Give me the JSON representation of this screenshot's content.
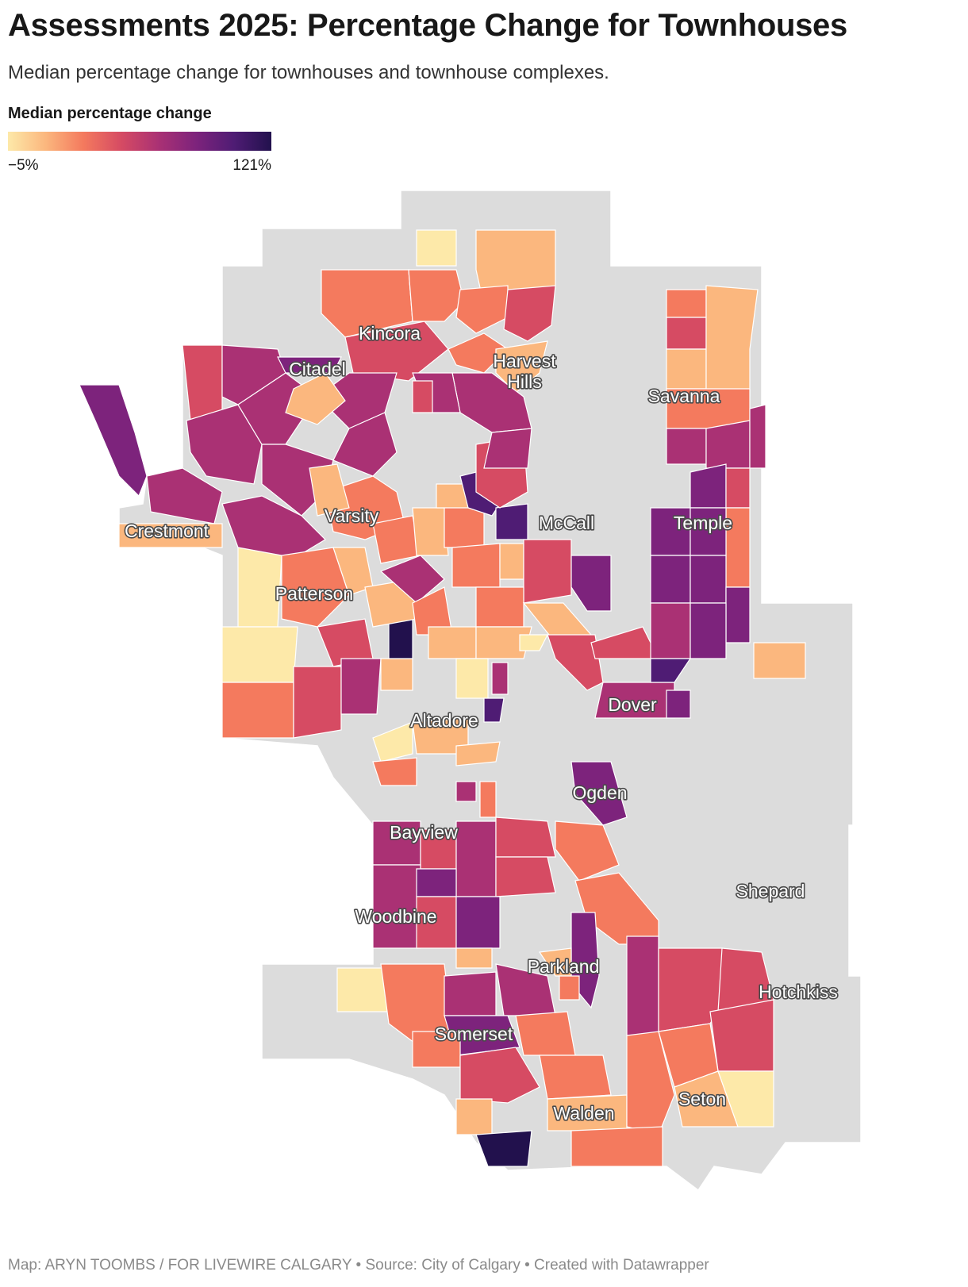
{
  "title": "Assessments 2025: Percentage Change for Townhouses",
  "subtitle": "Median percentage change for townhouses and townhouse complexes.",
  "legend": {
    "title": "Median percentage change",
    "min_label": "−5%",
    "max_label": "121%",
    "min_value": -5,
    "max_value": 121,
    "colors": [
      "#fde9a9",
      "#fbb77e",
      "#f47a5e",
      "#d64b63",
      "#aa3174",
      "#7d237c",
      "#4f1c74",
      "#22114d"
    ]
  },
  "map": {
    "no_data_color": "#dcdcdc",
    "labels": [
      {
        "id": "kincora",
        "text": "Kincora"
      },
      {
        "id": "citadel",
        "text": "Citadel"
      },
      {
        "id": "harvest-hills",
        "text": "Harvest Hills"
      },
      {
        "id": "savanna",
        "text": "Savanna"
      },
      {
        "id": "varsity",
        "text": "Varsity"
      },
      {
        "id": "crestmont",
        "text": "Crestmont"
      },
      {
        "id": "mccall",
        "text": "McCall"
      },
      {
        "id": "temple",
        "text": "Temple"
      },
      {
        "id": "patterson",
        "text": "Patterson"
      },
      {
        "id": "dover",
        "text": "Dover"
      },
      {
        "id": "altadore",
        "text": "Altadore"
      },
      {
        "id": "ogden",
        "text": "Ogden"
      },
      {
        "id": "bayview",
        "text": "Bayview"
      },
      {
        "id": "shepard",
        "text": "Shepard"
      },
      {
        "id": "woodbine",
        "text": "Woodbine"
      },
      {
        "id": "parkland",
        "text": "Parkland"
      },
      {
        "id": "hotchkiss",
        "text": "Hotchkiss"
      },
      {
        "id": "somerset",
        "text": "Somerset"
      },
      {
        "id": "seton",
        "text": "Seton"
      },
      {
        "id": "walden",
        "text": "Walden"
      }
    ]
  },
  "credit": "Map: ARYN TOOMBS / FOR LIVEWIRE CALGARY • Source: City of Calgary • Created with Datawrapper"
}
